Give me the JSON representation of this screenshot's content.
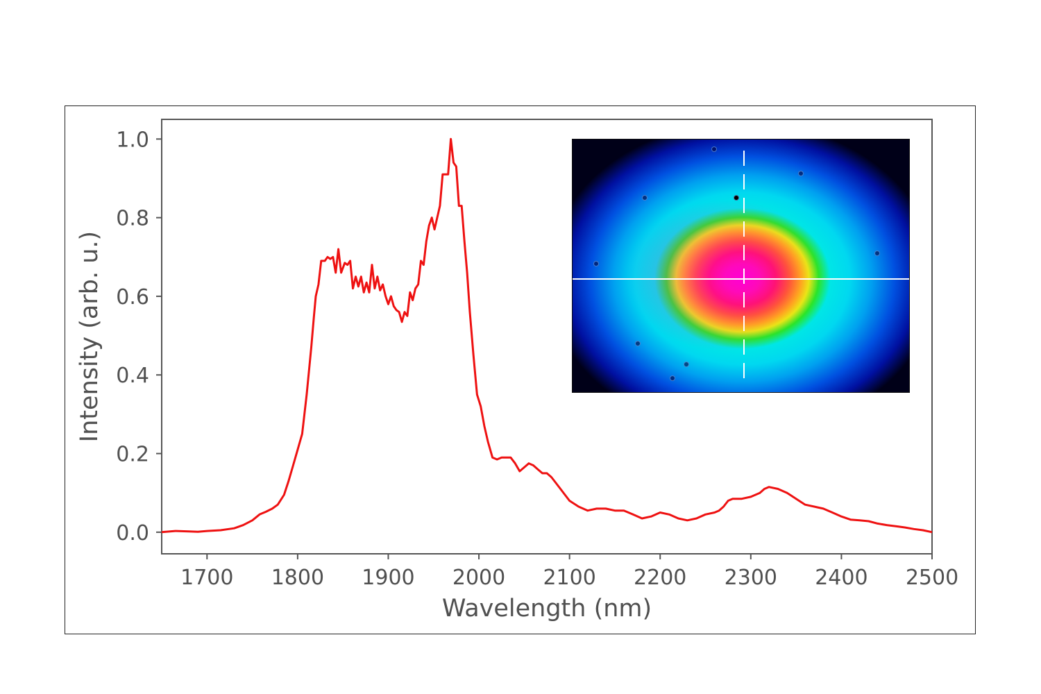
{
  "chart_data": {
    "type": "line",
    "title": "",
    "xlabel": "Wavelength (nm)",
    "ylabel": "Intensity (arb. u.)",
    "xlim": [
      1650,
      2500
    ],
    "ylim": [
      -0.055,
      1.05
    ],
    "xticks": [
      1700,
      1800,
      1900,
      2000,
      2100,
      2200,
      2300,
      2400,
      2500
    ],
    "xtick_labels": [
      "1700",
      "1800",
      "1900",
      "2000",
      "2100",
      "2200",
      "2300",
      "2400",
      "2500"
    ],
    "yticks": [
      0.0,
      0.2,
      0.4,
      0.6,
      0.8,
      1.0
    ],
    "ytick_labels": [
      "0.0",
      "0.2",
      "0.4",
      "0.6",
      "0.8",
      "1.0"
    ],
    "grid": false,
    "legend": null,
    "series": [
      {
        "name": "spectrum",
        "color": "#ee1111",
        "x": [
          1650,
          1665,
          1680,
          1690,
          1700,
          1715,
          1730,
          1740,
          1750,
          1758,
          1765,
          1772,
          1778,
          1785,
          1790,
          1795,
          1800,
          1805,
          1810,
          1815,
          1818,
          1820,
          1823,
          1826,
          1830,
          1833,
          1836,
          1839,
          1842,
          1845,
          1848,
          1852,
          1855,
          1858,
          1861,
          1864,
          1867,
          1870,
          1873,
          1876,
          1879,
          1882,
          1885,
          1888,
          1891,
          1894,
          1897,
          1900,
          1903,
          1906,
          1909,
          1912,
          1915,
          1918,
          1921,
          1924,
          1927,
          1930,
          1933,
          1936,
          1939,
          1942,
          1945,
          1948,
          1951,
          1954,
          1957,
          1960,
          1963,
          1966,
          1969,
          1972,
          1975,
          1978,
          1981,
          1984,
          1987,
          1990,
          1994,
          1998,
          2002,
          2006,
          2010,
          2015,
          2020,
          2025,
          2030,
          2035,
          2040,
          2045,
          2050,
          2055,
          2060,
          2065,
          2070,
          2075,
          2080,
          2085,
          2090,
          2095,
          2100,
          2110,
          2120,
          2130,
          2140,
          2150,
          2160,
          2170,
          2180,
          2190,
          2200,
          2210,
          2220,
          2230,
          2240,
          2250,
          2260,
          2265,
          2270,
          2275,
          2280,
          2290,
          2300,
          2310,
          2315,
          2320,
          2330,
          2340,
          2350,
          2360,
          2370,
          2380,
          2390,
          2400,
          2410,
          2420,
          2430,
          2440,
          2450,
          2460,
          2470,
          2480,
          2490,
          2500
        ],
        "y": [
          0.0,
          0.003,
          0.002,
          0.001,
          0.003,
          0.005,
          0.01,
          0.018,
          0.03,
          0.045,
          0.052,
          0.06,
          0.07,
          0.095,
          0.13,
          0.17,
          0.21,
          0.25,
          0.35,
          0.47,
          0.55,
          0.6,
          0.63,
          0.69,
          0.69,
          0.7,
          0.695,
          0.7,
          0.66,
          0.72,
          0.66,
          0.685,
          0.68,
          0.69,
          0.62,
          0.65,
          0.625,
          0.65,
          0.61,
          0.635,
          0.61,
          0.68,
          0.62,
          0.65,
          0.615,
          0.63,
          0.6,
          0.58,
          0.6,
          0.575,
          0.565,
          0.56,
          0.535,
          0.56,
          0.55,
          0.61,
          0.59,
          0.62,
          0.63,
          0.69,
          0.68,
          0.74,
          0.78,
          0.8,
          0.77,
          0.8,
          0.83,
          0.91,
          0.91,
          0.91,
          1.0,
          0.94,
          0.93,
          0.83,
          0.83,
          0.74,
          0.66,
          0.56,
          0.45,
          0.35,
          0.32,
          0.27,
          0.23,
          0.19,
          0.185,
          0.19,
          0.19,
          0.19,
          0.175,
          0.155,
          0.165,
          0.175,
          0.17,
          0.16,
          0.15,
          0.15,
          0.14,
          0.125,
          0.11,
          0.095,
          0.08,
          0.065,
          0.055,
          0.06,
          0.06,
          0.055,
          0.055,
          0.045,
          0.035,
          0.04,
          0.05,
          0.045,
          0.035,
          0.03,
          0.035,
          0.045,
          0.05,
          0.055,
          0.065,
          0.08,
          0.085,
          0.085,
          0.09,
          0.1,
          0.11,
          0.115,
          0.11,
          0.1,
          0.085,
          0.07,
          0.065,
          0.06,
          0.05,
          0.04,
          0.032,
          0.03,
          0.028,
          0.022,
          0.018,
          0.015,
          0.012,
          0.008,
          0.005,
          0.0
        ]
      }
    ],
    "inset": {
      "description": "false-color beam profile image with crosshair",
      "colormap": [
        "#000018",
        "#0010a0",
        "#0050e0",
        "#00a0f0",
        "#00e6e6",
        "#20f020",
        "#e8ff00",
        "#ffc000",
        "#ff6a10",
        "#ff1a4a",
        "#ff00cc"
      ],
      "crosshair_color": "#ffffff"
    }
  }
}
